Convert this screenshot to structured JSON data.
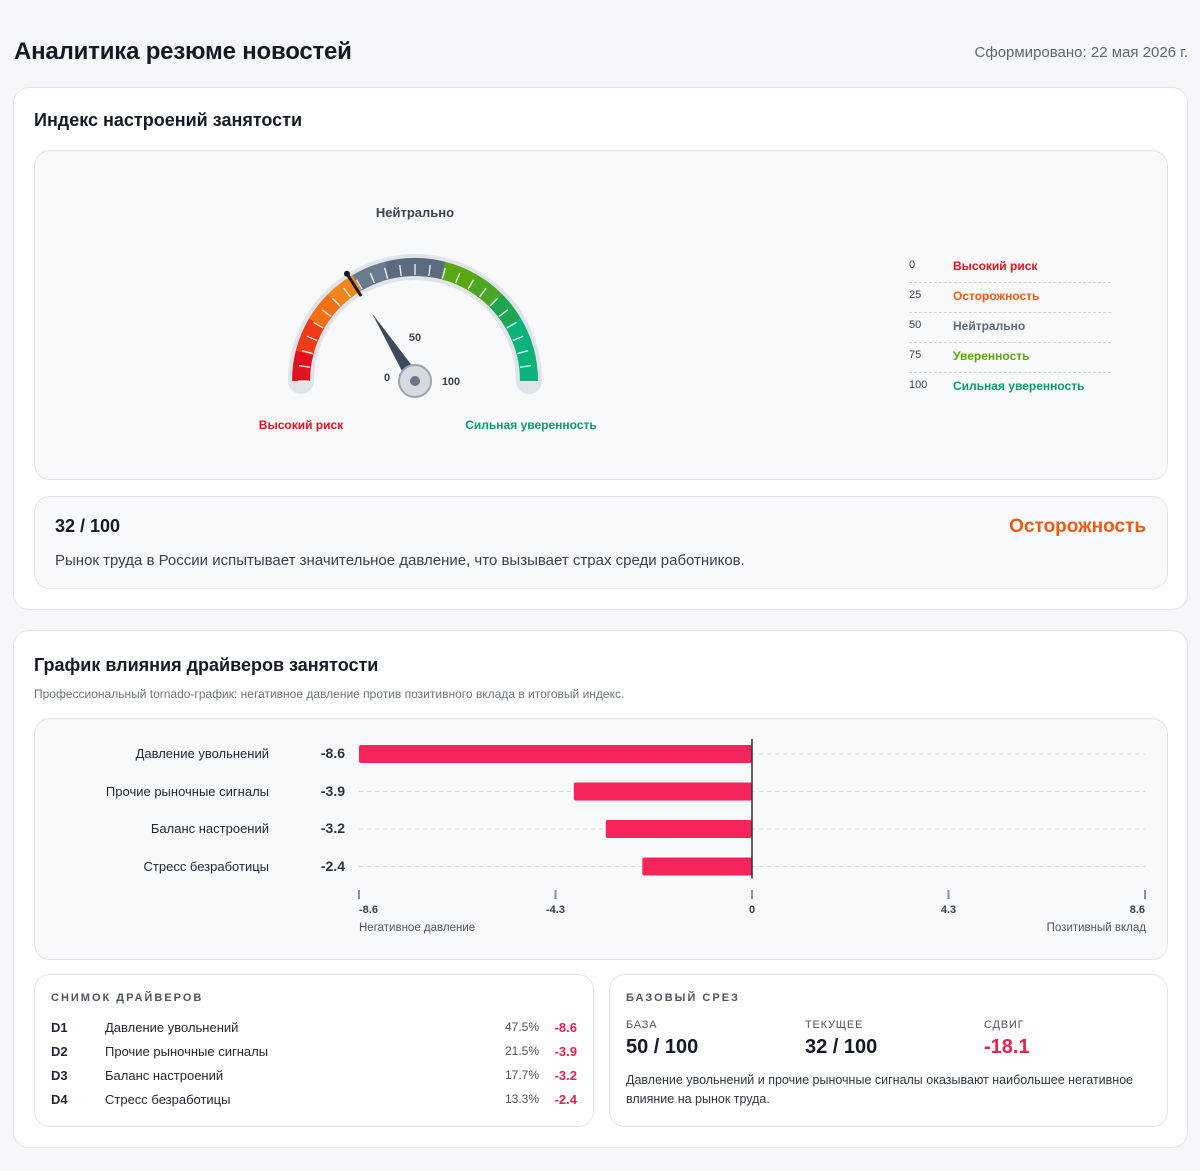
{
  "header": {
    "title": "Аналитика резюме новостей",
    "generated": "Сформировано: 22 мая 2026 г."
  },
  "sentiment": {
    "title": "Индекс настроений занятости",
    "gauge": {
      "value": 32,
      "min": 0,
      "max": 100,
      "top_label": "Нейтрально",
      "tick_min": "0",
      "tick_mid": "50",
      "tick_max": "100",
      "left_caption": "Высокий риск",
      "right_caption": "Сильная уверенность"
    },
    "legend": [
      {
        "value": "0",
        "label": "Высокий риск",
        "color": "#e3121f"
      },
      {
        "value": "25",
        "label": "Осторожность",
        "color": "#f25a12"
      },
      {
        "value": "50",
        "label": "Нейтрально",
        "color": "#5d6b80"
      },
      {
        "value": "75",
        "label": "Уверенность",
        "color": "#5aa80f"
      },
      {
        "value": "100",
        "label": "Сильная уверенность",
        "color": "#0a9d6a"
      }
    ],
    "score": "32 / 100",
    "status": "Осторожность",
    "description": "Рынок труда в России испытывает значительное давление, что вызывает страх среди работников."
  },
  "drivers": {
    "title": "График влияния драйверов занятости",
    "subtitle": "Профессиональный tornado-график: негативное давление против позитивного вклада в итоговый индекс.",
    "axis_left_caption": "Негативное давление",
    "axis_right_caption": "Позитивный вклад"
  },
  "chart_data": {
    "type": "bar",
    "orientation": "horizontal",
    "categories": [
      "Давление увольнений",
      "Прочие рыночные сигналы",
      "Баланс настроений",
      "Стресс безработицы"
    ],
    "values": [
      -8.6,
      -3.9,
      -3.2,
      -2.4
    ],
    "value_labels": [
      "-8.6",
      "-3.9",
      "-3.2",
      "-2.4"
    ],
    "xlim": [
      -8.6,
      8.6
    ],
    "ticks": [
      -8.6,
      -4.3,
      0,
      4.3,
      8.6
    ],
    "tick_labels": [
      "-8.6",
      "-4.3",
      "0",
      "4.3",
      "8.6"
    ],
    "bar_color": "#f5245a",
    "grid": true
  },
  "snapshot": {
    "title": "СНИМОК ДРАЙВЕРОВ",
    "rows": [
      {
        "code": "D1",
        "name": "Давление увольнений",
        "pct": "47.5%",
        "val": "-8.6"
      },
      {
        "code": "D2",
        "name": "Прочие рыночные сигналы",
        "pct": "21.5%",
        "val": "-3.9"
      },
      {
        "code": "D3",
        "name": "Баланс настроений",
        "pct": "17.7%",
        "val": "-3.2"
      },
      {
        "code": "D4",
        "name": "Стресс безработицы",
        "pct": "13.3%",
        "val": "-2.4"
      }
    ]
  },
  "baseline": {
    "title": "БАЗОВЫЙ СРЕЗ",
    "base_label": "БАЗА",
    "base_value": "50 / 100",
    "current_label": "ТЕКУЩЕЕ",
    "current_value": "32 / 100",
    "shift_label": "СДВИГ",
    "shift_value": "-18.1",
    "description": "Давление увольнений и прочие рыночные сигналы оказывают наибольшее негативное влияние на рынок труда."
  }
}
